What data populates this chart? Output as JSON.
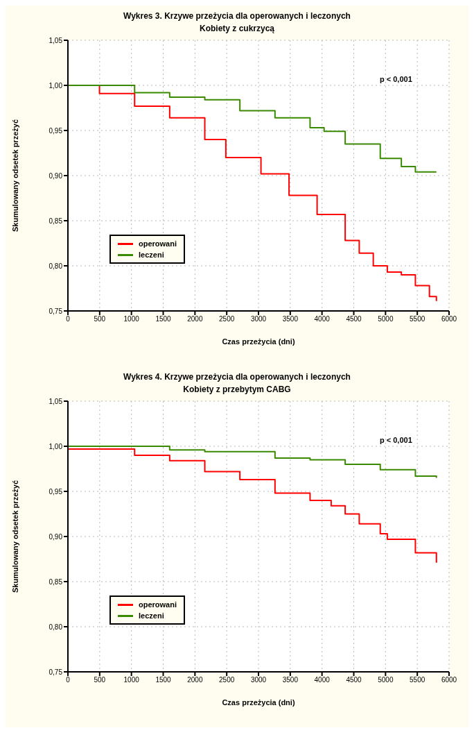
{
  "chart_data": [
    {
      "type": "step",
      "title": "Wykres 3. Krzywe przeżycia dla operowanych i leczonych",
      "subtitle": "Kobiety z cukrzycą",
      "xlabel": "Czas przeżycia (dni)",
      "ylabel": "Skumulowany odsetek przeżyć",
      "annotations": [
        "p < 0,001"
      ],
      "xlim": [
        0,
        6000
      ],
      "xticks": [
        0,
        500,
        1000,
        1500,
        2000,
        2500,
        3000,
        3500,
        4000,
        4500,
        5000,
        5500,
        6000
      ],
      "ylim": [
        0.75,
        1.05
      ],
      "yticks": [
        {
          "value": 0.75,
          "label": "0,75"
        },
        {
          "value": 0.8,
          "label": "0,80"
        },
        {
          "value": 0.85,
          "label": "0,85"
        },
        {
          "value": 0.9,
          "label": "0,90"
        },
        {
          "value": 0.95,
          "label": "0,95"
        },
        {
          "value": 1.0,
          "label": "1,00"
        },
        {
          "value": 1.05,
          "label": "1,05"
        }
      ],
      "grid": true,
      "legend": "left",
      "series": [
        {
          "name": "operowani",
          "color": "#ff0000",
          "x": [
            0,
            497,
            1050,
            1602,
            2155,
            2486,
            3039,
            3481,
            3923,
            4365,
            4586,
            4807,
            5028,
            5249,
            5470,
            5691,
            5801
          ],
          "values": [
            1.0,
            0.991,
            0.977,
            0.964,
            0.94,
            0.92,
            0.902,
            0.878,
            0.857,
            0.828,
            0.814,
            0.8,
            0.793,
            0.79,
            0.778,
            0.766,
            0.761
          ]
        },
        {
          "name": "leczeni",
          "color": "#3a8a00",
          "x": [
            0,
            1050,
            1602,
            2155,
            2707,
            3260,
            3812,
            4033,
            4365,
            4917,
            5249,
            5470,
            5801
          ],
          "values": [
            1.0,
            0.992,
            0.987,
            0.984,
            0.972,
            0.964,
            0.953,
            0.949,
            0.935,
            0.919,
            0.91,
            0.904,
            0.904
          ]
        }
      ]
    },
    {
      "type": "step",
      "title": "Wykres 4. Krzywe przeżycia dla operowanych i leczonych",
      "subtitle": "Kobiety z przebytym CABG",
      "xlabel": "Czas przeżycia (dni)",
      "ylabel": "Skumulowany odsetek przeżyć",
      "annotations": [
        "p < 0,001"
      ],
      "xlim": [
        0,
        6000
      ],
      "xticks": [
        0,
        500,
        1000,
        1500,
        2000,
        2500,
        3000,
        3500,
        4000,
        4500,
        5000,
        5500,
        6000
      ],
      "ylim": [
        0.75,
        1.05
      ],
      "yticks": [
        {
          "value": 0.75,
          "label": "0,75"
        },
        {
          "value": 0.8,
          "label": "0,80"
        },
        {
          "value": 0.85,
          "label": "0,85"
        },
        {
          "value": 0.9,
          "label": "0,90"
        },
        {
          "value": 0.95,
          "label": "0,95"
        },
        {
          "value": 1.0,
          "label": "1,00"
        },
        {
          "value": 1.05,
          "label": "1,05"
        }
      ],
      "grid": true,
      "legend": "left",
      "series": [
        {
          "name": "operowani",
          "color": "#ff0000",
          "x": [
            0,
            1050,
            1602,
            2155,
            2707,
            3260,
            3812,
            4144,
            4365,
            4586,
            4917,
            5028,
            5470,
            5801
          ],
          "values": [
            0.997,
            0.99,
            0.984,
            0.972,
            0.963,
            0.948,
            0.94,
            0.934,
            0.925,
            0.914,
            0.903,
            0.897,
            0.882,
            0.871
          ]
        },
        {
          "name": "leczeni",
          "color": "#3a8a00",
          "x": [
            0,
            1602,
            2155,
            3260,
            3812,
            4365,
            4917,
            5470,
            5801
          ],
          "values": [
            1.0,
            0.996,
            0.994,
            0.987,
            0.985,
            0.98,
            0.974,
            0.967,
            0.965
          ]
        }
      ]
    }
  ]
}
